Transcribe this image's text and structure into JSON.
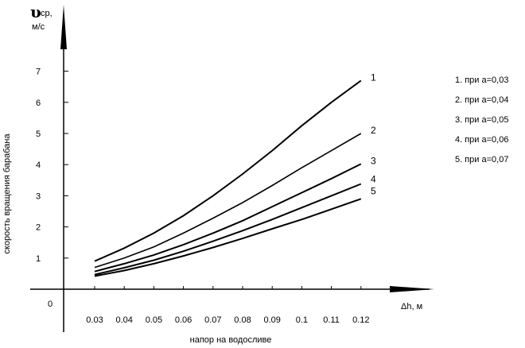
{
  "chart_data": {
    "type": "line",
    "origin_label": "0",
    "ylabel_symbol": "υ",
    "ylabel_sub": "ср,",
    "ylabel_unit": "м/с",
    "ylabel_side": "скорость вращения барабана",
    "xlabel": "Δh, м",
    "xlabel_bottom": "напор на водосливе",
    "x": [
      0.03,
      0.04,
      0.05,
      0.06,
      0.07,
      0.08,
      0.09,
      0.1,
      0.11,
      0.12
    ],
    "x_tick_labels": [
      "0.03",
      "0.04",
      "0.05",
      "0.06",
      "0.07",
      "0.08",
      "0.09",
      "0.1",
      "0.11",
      "0.12"
    ],
    "y_ticks": [
      1,
      2,
      3,
      4,
      5,
      6,
      7
    ],
    "y_tick_labels": [
      "1",
      "2",
      "3",
      "4",
      "5",
      "6",
      "7"
    ],
    "xlim": [
      0.02,
      0.13
    ],
    "ylim": [
      0,
      8
    ],
    "grid": false,
    "legend_placement": "right",
    "series": [
      {
        "name": "1",
        "values": [
          0.9,
          1.32,
          1.8,
          2.36,
          3.0,
          3.7,
          4.45,
          5.25,
          6.0,
          6.7
        ],
        "legend": "1. при а=0,03"
      },
      {
        "name": "2",
        "values": [
          0.7,
          1.0,
          1.36,
          1.8,
          2.28,
          2.78,
          3.33,
          3.9,
          4.45,
          5.0
        ],
        "legend": "2. при а=0,04"
      },
      {
        "name": "3",
        "values": [
          0.57,
          0.82,
          1.1,
          1.43,
          1.8,
          2.2,
          2.65,
          3.1,
          3.55,
          4.02
        ],
        "legend": "3. при а=0,05"
      },
      {
        "name": "4",
        "values": [
          0.47,
          0.69,
          0.93,
          1.22,
          1.54,
          1.88,
          2.24,
          2.62,
          3.0,
          3.38
        ],
        "legend": "4. при а=0,06"
      },
      {
        "name": "5",
        "values": [
          0.42,
          0.6,
          0.82,
          1.07,
          1.34,
          1.63,
          1.94,
          2.24,
          2.57,
          2.9
        ],
        "legend": "5. при а=0,07"
      }
    ]
  }
}
